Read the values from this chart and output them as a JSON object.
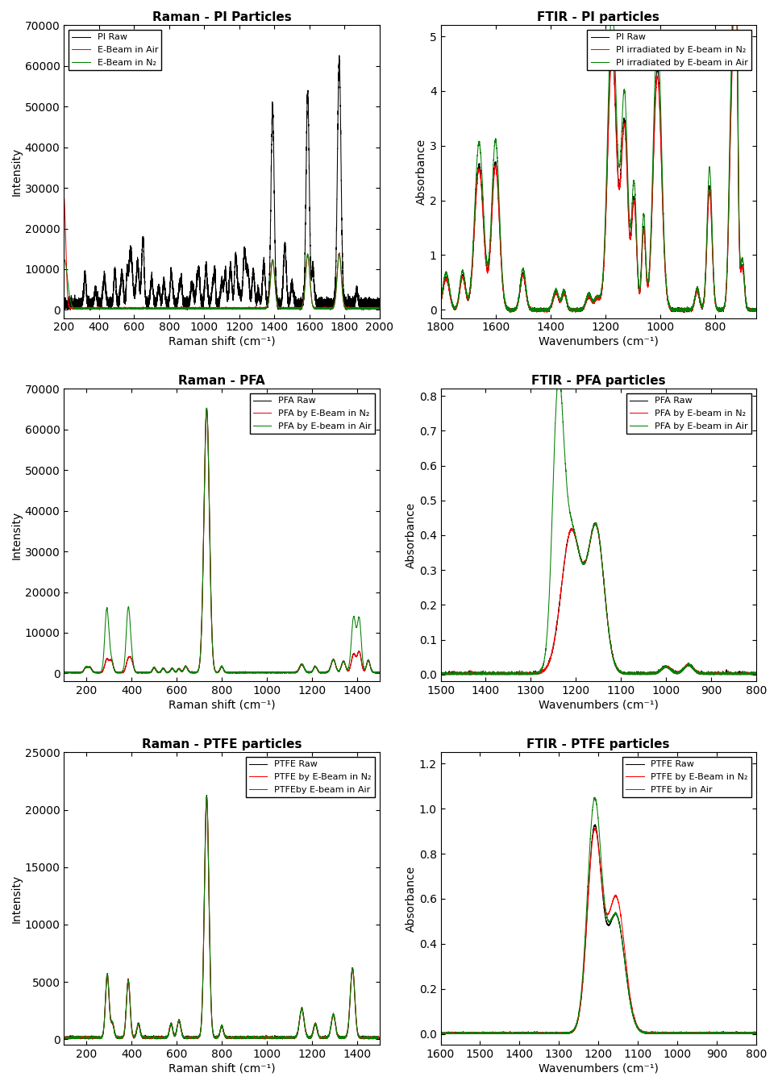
{
  "plots": [
    {
      "title": "Raman - PI Particles",
      "xlabel": "Raman shift (cm⁻¹)",
      "ylabel": "Intensity",
      "xlim": [
        200,
        2000
      ],
      "ylim": [
        -2000,
        70000
      ],
      "legend": [
        "PI Raw",
        "E-Beam in Air",
        "E-Beam in N₂"
      ],
      "legend_colors": [
        "black",
        "red",
        "green"
      ],
      "legend_loc": "upper left"
    },
    {
      "title": "FTIR - PI particles",
      "xlabel": "Wavenumbers (cm⁻¹)",
      "ylabel": "Absorbance",
      "xlim": [
        1800,
        650
      ],
      "ylim": [
        -0.15,
        5.2
      ],
      "legend": [
        "PI Raw",
        "PI irradiated by E-beam in N₂",
        "PI irradiated by E-beam in Air"
      ],
      "legend_colors": [
        "black",
        "red",
        "green"
      ],
      "legend_loc": "upper right"
    },
    {
      "title": "Raman - PFA",
      "xlabel": "Raman shift (cm⁻¹)",
      "ylabel": "Intensity",
      "xlim": [
        100,
        1500
      ],
      "ylim": [
        -2000,
        70000
      ],
      "legend": [
        "PFA Raw",
        "PFA by E-Beam in N₂",
        "PFA by E-beam in Air"
      ],
      "legend_colors": [
        "black",
        "red",
        "green"
      ],
      "legend_loc": "upper right"
    },
    {
      "title": "FTIR - PFA particles",
      "xlabel": "Wavenumbers (cm⁻¹)",
      "ylabel": "Absorbance",
      "xlim": [
        1500,
        800
      ],
      "ylim": [
        -0.02,
        0.82
      ],
      "legend": [
        "PFA Raw",
        "PFA by E-beam in N₂",
        "PFA by E-beam in Air"
      ],
      "legend_colors": [
        "black",
        "red",
        "green"
      ],
      "legend_loc": "upper right"
    },
    {
      "title": "Raman - PTFE particles",
      "xlabel": "Raman shift (cm⁻¹)",
      "ylabel": "Intensity",
      "xlim": [
        100,
        1500
      ],
      "ylim": [
        -500,
        25000
      ],
      "legend": [
        "PTFE Raw",
        "PTFE by E-Beam in N₂",
        "PTFEby E-beam in Air"
      ],
      "legend_colors": [
        "black",
        "red",
        "green"
      ],
      "legend_loc": "upper right"
    },
    {
      "title": "FTIR - PTFE particles",
      "xlabel": "Wavenumbers (cm⁻¹)",
      "ylabel": "Absorbance",
      "xlim": [
        1600,
        800
      ],
      "ylim": [
        -0.05,
        1.25
      ],
      "legend": [
        "PTFE Raw",
        "PTFE by E-Beam in N₂",
        "PTFE by in Air"
      ],
      "legend_colors": [
        "black",
        "red",
        "green"
      ],
      "legend_loc": "upper right"
    }
  ]
}
